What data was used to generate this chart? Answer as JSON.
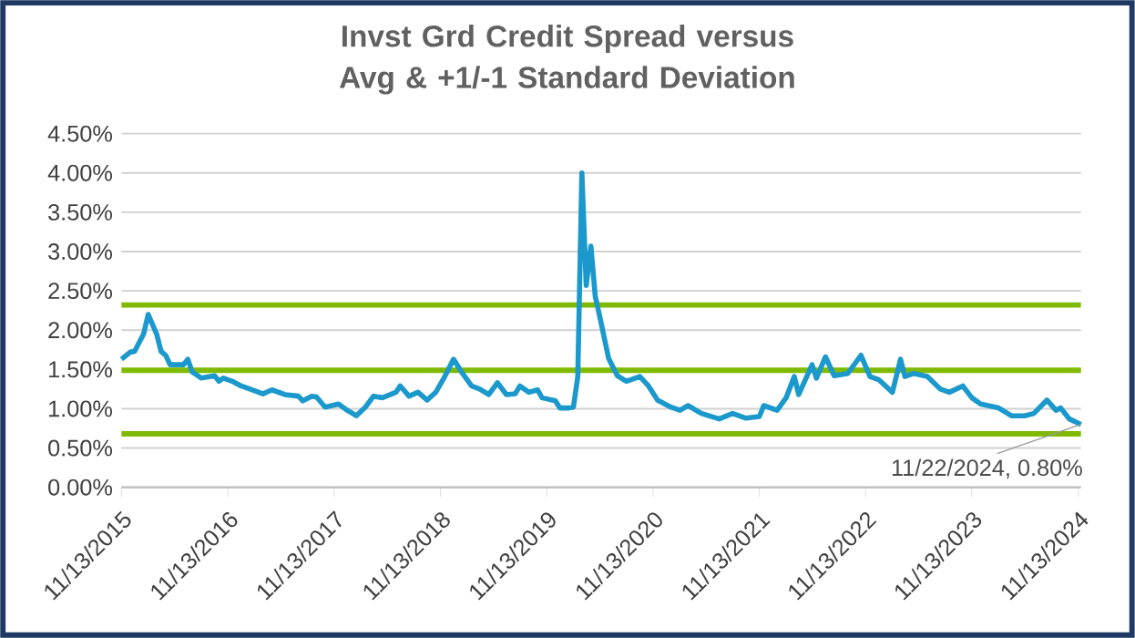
{
  "chart_data": {
    "type": "line",
    "title": "Invst Grd Credit Spread versus Avg & +1/-1 Standard Deviation",
    "x": [
      "2015-11-13",
      "2015-12-13",
      "2015-12-28",
      "2016-01-28",
      "2016-02-13",
      "2016-03-13",
      "2016-03-28",
      "2016-04-13",
      "2016-04-28",
      "2016-06-13",
      "2016-06-28",
      "2016-07-13",
      "2016-08-13",
      "2016-09-28",
      "2016-10-13",
      "2016-10-28",
      "2016-11-28",
      "2016-12-28",
      "2017-01-28",
      "2017-03-13",
      "2017-04-13",
      "2017-05-28",
      "2017-07-13",
      "2017-07-28",
      "2017-08-28",
      "2017-09-13",
      "2017-10-13",
      "2017-11-28",
      "2017-12-28",
      "2018-01-28",
      "2018-02-28",
      "2018-03-28",
      "2018-04-28",
      "2018-06-13",
      "2018-06-28",
      "2018-07-28",
      "2018-08-28",
      "2018-09-28",
      "2018-10-28",
      "2018-11-28",
      "2018-12-28",
      "2019-01-28",
      "2019-02-28",
      "2019-03-28",
      "2019-04-28",
      "2019-05-28",
      "2019-06-28",
      "2019-07-28",
      "2019-08-13",
      "2019-09-13",
      "2019-10-13",
      "2019-10-28",
      "2019-12-13",
      "2019-12-28",
      "2020-01-28",
      "2020-02-13",
      "2020-02-28",
      "2020-03-13",
      "2020-03-28",
      "2020-04-13",
      "2020-04-28",
      "2020-05-13",
      "2020-06-13",
      "2020-07-13",
      "2020-08-13",
      "2020-09-28",
      "2020-10-28",
      "2020-11-28",
      "2021-01-13",
      "2021-02-13",
      "2021-03-13",
      "2021-04-28",
      "2021-06-28",
      "2021-08-13",
      "2021-09-28",
      "2021-11-13",
      "2021-11-28",
      "2022-01-13",
      "2022-02-13",
      "2022-03-13",
      "2022-03-28",
      "2022-05-13",
      "2022-05-28",
      "2022-06-28",
      "2022-07-28",
      "2022-09-13",
      "2022-10-28",
      "2022-11-28",
      "2022-12-28",
      "2023-02-13",
      "2023-03-13",
      "2023-03-28",
      "2023-04-28",
      "2023-06-13",
      "2023-07-28",
      "2023-08-28",
      "2023-10-13",
      "2023-11-13",
      "2023-12-13",
      "2024-02-13",
      "2024-03-28",
      "2024-05-13",
      "2024-06-13",
      "2024-07-28",
      "2024-08-28",
      "2024-09-13",
      "2024-10-13",
      "2024-11-22"
    ],
    "series": [
      {
        "color": "#1b98cc",
        "values": [
          1.63,
          1.72,
          1.73,
          1.95,
          2.2,
          1.95,
          1.73,
          1.68,
          1.56,
          1.56,
          1.63,
          1.47,
          1.39,
          1.42,
          1.35,
          1.39,
          1.35,
          1.29,
          1.25,
          1.19,
          1.24,
          1.18,
          1.16,
          1.1,
          1.16,
          1.15,
          1.02,
          1.06,
          0.98,
          0.91,
          1.02,
          1.16,
          1.14,
          1.21,
          1.29,
          1.16,
          1.21,
          1.11,
          1.21,
          1.41,
          1.63,
          1.45,
          1.29,
          1.25,
          1.18,
          1.33,
          1.18,
          1.19,
          1.29,
          1.21,
          1.24,
          1.14,
          1.1,
          1.01,
          1.01,
          1.02,
          1.41,
          4.0,
          2.57,
          3.07,
          2.43,
          2.18,
          1.64,
          1.42,
          1.35,
          1.41,
          1.29,
          1.11,
          1.02,
          0.98,
          1.04,
          0.94,
          0.87,
          0.94,
          0.88,
          0.9,
          1.04,
          0.98,
          1.14,
          1.41,
          1.18,
          1.56,
          1.39,
          1.66,
          1.42,
          1.45,
          1.68,
          1.41,
          1.37,
          1.21,
          1.63,
          1.41,
          1.45,
          1.41,
          1.25,
          1.21,
          1.29,
          1.14,
          1.06,
          1.01,
          0.91,
          0.91,
          0.94,
          1.11,
          0.98,
          1.01,
          0.87,
          0.8
        ]
      }
    ],
    "xlim": [
      "2015-11-13",
      "2024-11-22"
    ],
    "xticks": [
      {
        "value": "2015-11-13",
        "label": "11/13/2015"
      },
      {
        "value": "2016-11-13",
        "label": "11/13/2016"
      },
      {
        "value": "2017-11-13",
        "label": "11/13/2017"
      },
      {
        "value": "2018-11-13",
        "label": "11/13/2018"
      },
      {
        "value": "2019-11-13",
        "label": "11/13/2019"
      },
      {
        "value": "2020-11-13",
        "label": "11/13/2020"
      },
      {
        "value": "2021-11-13",
        "label": "11/13/2021"
      },
      {
        "value": "2022-11-13",
        "label": "11/13/2022"
      },
      {
        "value": "2023-11-13",
        "label": "11/13/2023"
      },
      {
        "value": "2024-11-13",
        "label": "11/13/2024"
      }
    ],
    "ylim": [
      0,
      4.5
    ],
    "yticks": [
      {
        "value": 0,
        "label": "0.00%"
      },
      {
        "value": 0.5,
        "label": "0.50%"
      },
      {
        "value": 1,
        "label": "1.00%"
      },
      {
        "value": 1.5,
        "label": "1.50%"
      },
      {
        "value": 2,
        "label": "2.00%"
      },
      {
        "value": 2.5,
        "label": "2.50%"
      },
      {
        "value": 3,
        "label": "3.00%"
      },
      {
        "value": 3.5,
        "label": "3.50%"
      },
      {
        "value": 4,
        "label": "4.00%"
      },
      {
        "value": 4.5,
        "label": "4.50%"
      }
    ],
    "grid": "y",
    "ref_lines": [
      {
        "axis": "y",
        "value": 2.32,
        "color": "#7fba00"
      },
      {
        "axis": "y",
        "value": 1.49,
        "color": "#7fba00"
      },
      {
        "axis": "y",
        "value": 0.68,
        "color": "#7fba00"
      }
    ],
    "annotations": [
      {
        "text": "11/22/2024, 0.80%",
        "x": "2024-11-22",
        "y": 0.8
      }
    ]
  }
}
